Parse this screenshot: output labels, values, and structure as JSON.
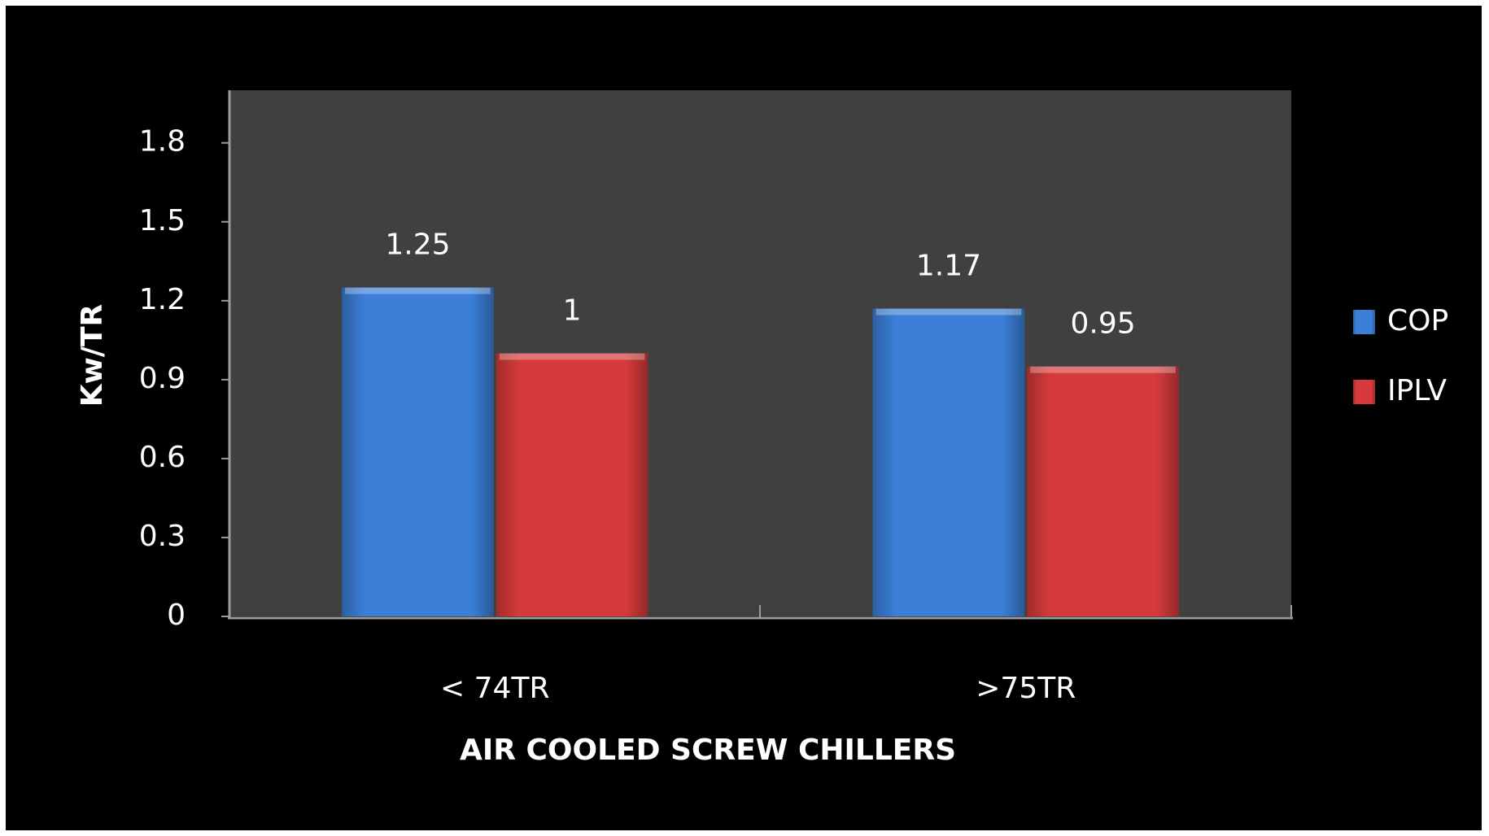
{
  "chart_data": {
    "type": "bar",
    "categories": [
      "< 74TR",
      ">75TR"
    ],
    "series": [
      {
        "name": "COP",
        "color": "#3b7fd8",
        "values": [
          1.25,
          1.17
        ]
      },
      {
        "name": "IPLV",
        "color": "#d63a3a",
        "values": [
          1,
          0.95
        ]
      }
    ],
    "xlabel": "AIR COOLED SCREW CHILLERS",
    "ylabel": "Kw/TR",
    "ylim": [
      0,
      2
    ],
    "yticks": [
      0,
      0.3,
      0.6,
      0.9,
      1.2,
      1.5,
      1.8
    ],
    "legend": "right",
    "data_labels": true
  }
}
